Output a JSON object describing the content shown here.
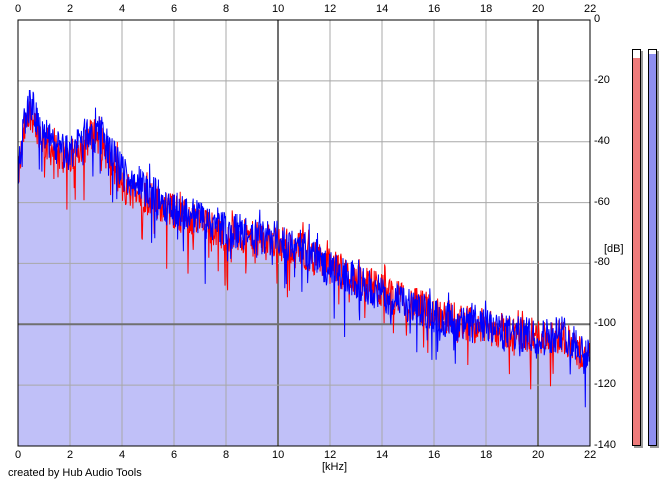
{
  "chart_data": {
    "type": "area",
    "xlabel": "[kHz]",
    "ylabel": "[dB]",
    "xlim": [
      0,
      22
    ],
    "ylim": [
      -140,
      0
    ],
    "x_ticks": [
      "0",
      "2",
      "4",
      "6",
      "8",
      "10",
      "12",
      "14",
      "16",
      "18",
      "20",
      "22"
    ],
    "y_ticks": [
      "0",
      "-20",
      "-40",
      "-60",
      "-80",
      "-100",
      "-120",
      "-140"
    ],
    "grid": true,
    "series": [
      {
        "color": "#ff0000",
        "x": [
          0,
          0.25,
          0.5,
          0.75,
          1.0,
          1.5,
          2.0,
          2.5,
          3.0,
          3.5,
          4.0,
          5.0,
          6.0,
          7.0,
          8.0,
          9.0,
          10.0,
          11.0,
          12.0,
          13.0,
          14.0,
          15.0,
          16.0,
          17.0,
          18.0,
          19.0,
          20.0,
          21.0,
          22.0
        ],
        "values": [
          -52,
          -36,
          -30,
          -35,
          -40,
          -44,
          -46,
          -40,
          -37,
          -45,
          -55,
          -58,
          -63,
          -67,
          -70,
          -72,
          -73,
          -76,
          -81,
          -85,
          -89,
          -93,
          -96,
          -99,
          -101,
          -103,
          -104,
          -104,
          -112
        ]
      },
      {
        "color": "#0000ff",
        "x": [
          0,
          0.25,
          0.5,
          0.75,
          1.0,
          1.5,
          2.0,
          2.5,
          3.0,
          3.5,
          4.0,
          5.0,
          6.0,
          7.0,
          8.0,
          9.0,
          10.0,
          11.0,
          12.0,
          13.0,
          14.0,
          15.0,
          16.0,
          17.0,
          18.0,
          19.0,
          20.0,
          21.0,
          22.0
        ],
        "values": [
          -50,
          -32,
          -27,
          -34,
          -38,
          -42,
          -44,
          -38,
          -36,
          -42,
          -50,
          -56,
          -62,
          -65,
          -69,
          -71,
          -72,
          -75,
          -82,
          -86,
          -90,
          -94,
          -97,
          -100,
          -101,
          -103,
          -104,
          -103,
          -110
        ]
      }
    ],
    "level_meters": [
      {
        "color": "#ee7b7b",
        "level": 0.98
      },
      {
        "color": "#8f8ff0",
        "level": 0.99
      }
    ],
    "fill_color": "#c0c0f8",
    "red_color": "#ff0000",
    "blue_color": "#0000ff"
  },
  "footer": {
    "credit": "created by Hub Audio Tools"
  }
}
